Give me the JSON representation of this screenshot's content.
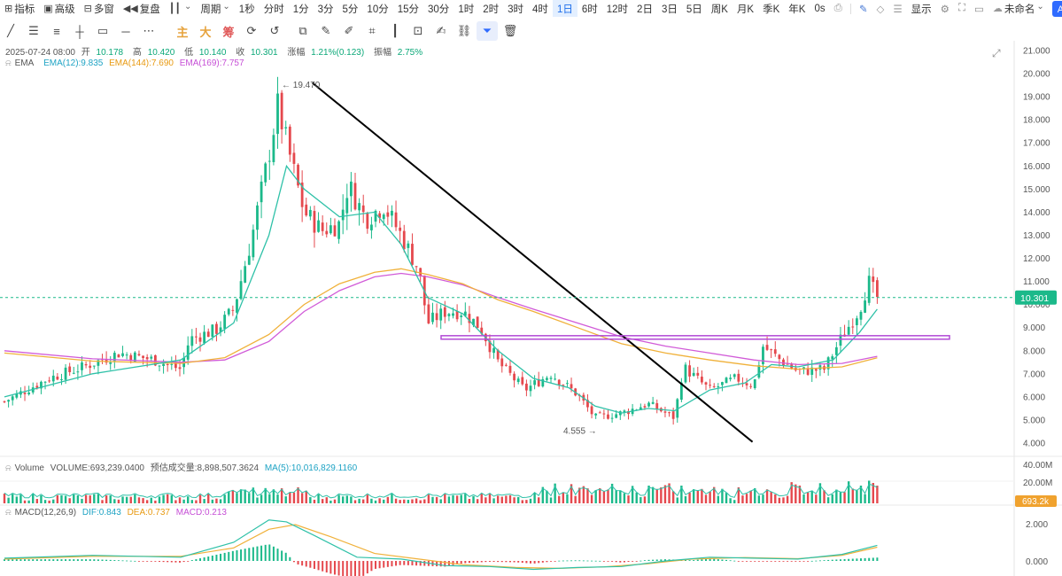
{
  "toolbar": {
    "indicator_label": "指标",
    "advanced_label": "高级",
    "multi_window_label": "多窗",
    "replay_label": "复盘",
    "period_label": "周期",
    "timeframes": [
      "1秒",
      "分时",
      "1分",
      "3分",
      "5分",
      "10分",
      "15分",
      "30分",
      "1时",
      "2时",
      "3时",
      "4时",
      "1日",
      "6时",
      "12时",
      "2日",
      "3日",
      "5日",
      "周K",
      "月K",
      "季K",
      "年K"
    ],
    "active_timeframe": "1日",
    "countdown": "0s",
    "display_label": "显示",
    "unnamed_label": "未命名",
    "ai_label": "AI解读"
  },
  "drawbar": {
    "text_tools": [
      "主",
      "大",
      "筹"
    ]
  },
  "ohlc": {
    "date": "2025-07-24 08:00",
    "open_label": "开",
    "open": "10.178",
    "high_label": "高",
    "high": "10.420",
    "low_label": "低",
    "low": "10.140",
    "close_label": "收",
    "close": "10.301",
    "change_label": "涨幅",
    "change": "1.21%(0.123)",
    "amplitude_label": "振幅",
    "amplitude": "2.75%"
  },
  "ema": {
    "name": "EMA",
    "ema12": "EMA(12):9.835",
    "ema144": "EMA(144):7.690",
    "ema169": "EMA(169):7.757"
  },
  "volume_info": {
    "name": "Volume",
    "volume": "VOLUME:693,239.0400",
    "estimated": "预估成交量:8,898,507.3624",
    "ma5": "MA(5):10,016,829.1160"
  },
  "macd_info": {
    "name": "MACD(12,26,9)",
    "dif": "DIF:0.843",
    "dea": "DEA:0.737",
    "macd": "MACD:0.213"
  },
  "chart_data": {
    "type": "candlestick",
    "price_axis": {
      "ticks": [
        "21.000",
        "20.000",
        "19.000",
        "18.000",
        "17.000",
        "16.000",
        "15.000",
        "14.000",
        "13.000",
        "12.000",
        "11.000",
        "10.000",
        "9.000",
        "8.000",
        "7.000",
        "6.000",
        "5.000",
        "4.000"
      ],
      "ylim": [
        4.0,
        21.0
      ]
    },
    "current_price": "10.301",
    "annotations": {
      "high": "19.470",
      "low": "4.555"
    },
    "trendline": {
      "from": [
        0.308,
        19.6
      ],
      "to": [
        0.742,
        4.05
      ]
    },
    "horizontal_zone": {
      "x_from": 0.498,
      "x_to": 1.072,
      "y_low": 8.5,
      "y_high": 8.65
    },
    "close_path": [
      [
        0,
        5.8
      ],
      [
        0.05,
        6.8
      ],
      [
        0.09,
        7.3
      ],
      [
        0.13,
        7.9
      ],
      [
        0.17,
        7.6
      ],
      [
        0.2,
        7.2
      ],
      [
        0.21,
        8.5
      ],
      [
        0.24,
        8.9
      ],
      [
        0.26,
        9.8
      ],
      [
        0.28,
        12.8
      ],
      [
        0.3,
        16.5
      ],
      [
        0.31,
        18.6
      ],
      [
        0.32,
        17.0
      ],
      [
        0.34,
        14.0
      ],
      [
        0.36,
        13.2
      ],
      [
        0.38,
        13.5
      ],
      [
        0.39,
        15.2
      ],
      [
        0.41,
        13.7
      ],
      [
        0.43,
        14.3
      ],
      [
        0.45,
        13.0
      ],
      [
        0.47,
        11.5
      ],
      [
        0.48,
        9.2
      ],
      [
        0.5,
        9.7
      ],
      [
        0.52,
        9.7
      ],
      [
        0.54,
        9.0
      ],
      [
        0.56,
        7.5
      ],
      [
        0.59,
        6.3
      ],
      [
        0.62,
        7.0
      ],
      [
        0.65,
        6.1
      ],
      [
        0.67,
        5.1
      ],
      [
        0.7,
        5.3
      ],
      [
        0.73,
        5.7
      ],
      [
        0.76,
        5.1
      ],
      [
        0.77,
        7.3
      ],
      [
        0.8,
        6.3
      ],
      [
        0.83,
        6.8
      ],
      [
        0.85,
        6.5
      ],
      [
        0.86,
        8.2
      ],
      [
        0.88,
        7.6
      ],
      [
        0.9,
        7.1
      ],
      [
        0.93,
        7.2
      ],
      [
        0.95,
        8.6
      ],
      [
        0.97,
        9.8
      ],
      [
        0.98,
        11.0
      ],
      [
        0.99,
        10.3
      ]
    ],
    "ema12_path": [
      [
        0,
        6.0
      ],
      [
        0.1,
        7.0
      ],
      [
        0.2,
        7.6
      ],
      [
        0.26,
        9.2
      ],
      [
        0.3,
        13.0
      ],
      [
        0.32,
        16.0
      ],
      [
        0.34,
        15.0
      ],
      [
        0.38,
        13.8
      ],
      [
        0.42,
        14.0
      ],
      [
        0.45,
        12.6
      ],
      [
        0.48,
        10.3
      ],
      [
        0.52,
        9.6
      ],
      [
        0.56,
        8.0
      ],
      [
        0.6,
        6.8
      ],
      [
        0.64,
        6.4
      ],
      [
        0.67,
        5.6
      ],
      [
        0.7,
        5.3
      ],
      [
        0.73,
        5.5
      ],
      [
        0.76,
        5.4
      ],
      [
        0.8,
        6.3
      ],
      [
        0.84,
        6.6
      ],
      [
        0.87,
        7.4
      ],
      [
        0.9,
        7.3
      ],
      [
        0.94,
        7.6
      ],
      [
        0.97,
        8.8
      ],
      [
        0.99,
        9.8
      ]
    ],
    "ema144_path": [
      [
        0,
        7.9
      ],
      [
        0.1,
        7.55
      ],
      [
        0.2,
        7.45
      ],
      [
        0.25,
        7.7
      ],
      [
        0.3,
        8.7
      ],
      [
        0.34,
        10.0
      ],
      [
        0.38,
        10.9
      ],
      [
        0.42,
        11.4
      ],
      [
        0.45,
        11.55
      ],
      [
        0.48,
        11.3
      ],
      [
        0.52,
        10.9
      ],
      [
        0.56,
        10.2
      ],
      [
        0.6,
        9.7
      ],
      [
        0.65,
        9.0
      ],
      [
        0.7,
        8.3
      ],
      [
        0.75,
        7.9
      ],
      [
        0.8,
        7.6
      ],
      [
        0.85,
        7.35
      ],
      [
        0.9,
        7.2
      ],
      [
        0.95,
        7.3
      ],
      [
        0.99,
        7.69
      ]
    ],
    "ema169_path": [
      [
        0,
        8.0
      ],
      [
        0.1,
        7.65
      ],
      [
        0.2,
        7.5
      ],
      [
        0.25,
        7.6
      ],
      [
        0.3,
        8.4
      ],
      [
        0.34,
        9.7
      ],
      [
        0.38,
        10.6
      ],
      [
        0.42,
        11.2
      ],
      [
        0.45,
        11.35
      ],
      [
        0.48,
        11.2
      ],
      [
        0.52,
        10.85
      ],
      [
        0.56,
        10.3
      ],
      [
        0.6,
        9.8
      ],
      [
        0.65,
        9.2
      ],
      [
        0.7,
        8.6
      ],
      [
        0.75,
        8.2
      ],
      [
        0.8,
        7.9
      ],
      [
        0.85,
        7.6
      ],
      [
        0.9,
        7.4
      ],
      [
        0.95,
        7.45
      ],
      [
        0.99,
        7.757
      ]
    ],
    "volume_axis": {
      "ticks": [
        "40.00M",
        "20.00M"
      ],
      "current": "693.2k"
    },
    "macd_axis": {
      "ticks": [
        "2.000",
        "0.000"
      ]
    },
    "dif_path": [
      [
        0,
        0.15
      ],
      [
        0.1,
        0.3
      ],
      [
        0.2,
        0.2
      ],
      [
        0.26,
        1.0
      ],
      [
        0.3,
        2.2
      ],
      [
        0.32,
        2.1
      ],
      [
        0.35,
        1.4
      ],
      [
        0.4,
        0.2
      ],
      [
        0.45,
        0.1
      ],
      [
        0.5,
        -0.25
      ],
      [
        0.55,
        -0.3
      ],
      [
        0.6,
        -0.45
      ],
      [
        0.65,
        -0.35
      ],
      [
        0.7,
        -0.3
      ],
      [
        0.75,
        0.0
      ],
      [
        0.8,
        0.2
      ],
      [
        0.85,
        0.15
      ],
      [
        0.9,
        0.1
      ],
      [
        0.95,
        0.35
      ],
      [
        0.99,
        0.84
      ]
    ],
    "dea_path": [
      [
        0,
        0.1
      ],
      [
        0.1,
        0.25
      ],
      [
        0.2,
        0.25
      ],
      [
        0.26,
        0.7
      ],
      [
        0.3,
        1.7
      ],
      [
        0.33,
        1.95
      ],
      [
        0.37,
        1.3
      ],
      [
        0.42,
        0.4
      ],
      [
        0.47,
        0.1
      ],
      [
        0.52,
        -0.2
      ],
      [
        0.58,
        -0.35
      ],
      [
        0.63,
        -0.4
      ],
      [
        0.68,
        -0.32
      ],
      [
        0.73,
        -0.15
      ],
      [
        0.78,
        0.1
      ],
      [
        0.84,
        0.18
      ],
      [
        0.9,
        0.12
      ],
      [
        0.95,
        0.3
      ],
      [
        0.99,
        0.74
      ]
    ]
  },
  "colors": {
    "up": "#1bb98a",
    "down": "#e5484d",
    "ema12": "#2fc1a8",
    "ema144": "#f0b13a",
    "ema169": "#d15bd8",
    "trendline": "#000000",
    "zone": "#b24ad6",
    "last_price_bg": "#1bb98a",
    "volume_price_bg": "#f0a22e"
  }
}
